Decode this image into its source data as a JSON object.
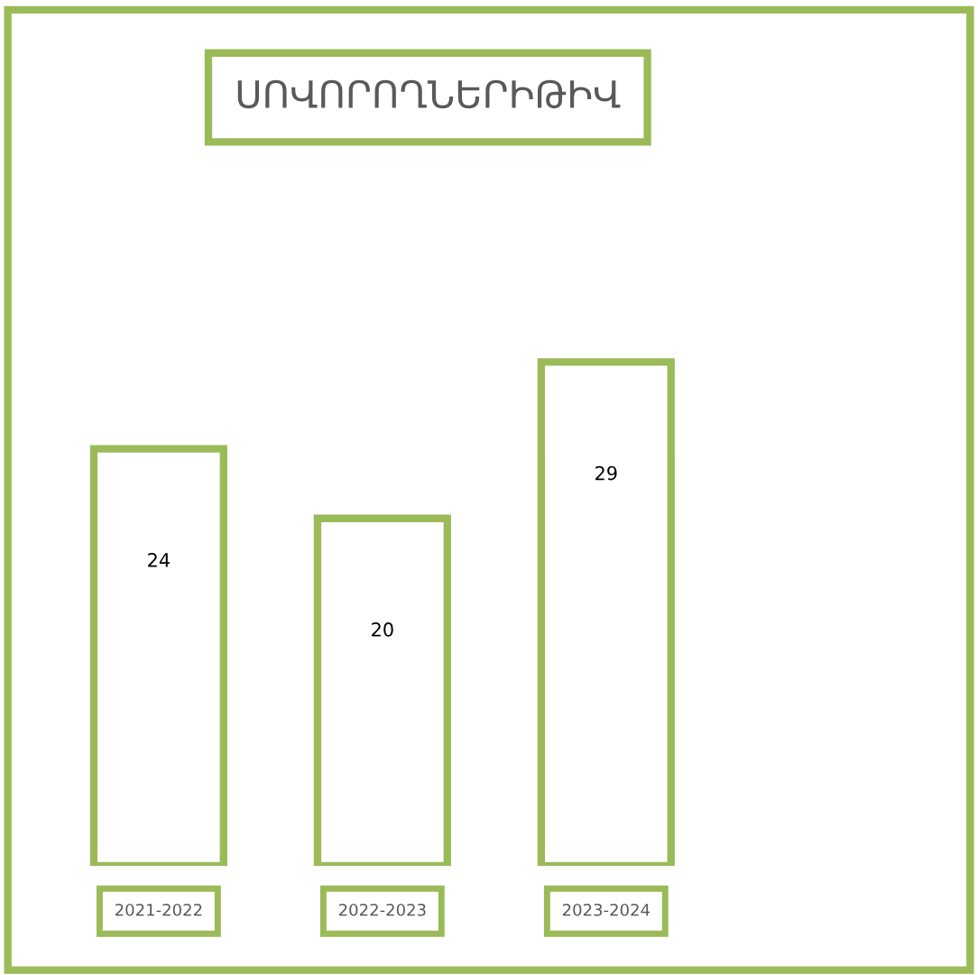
{
  "chart_data": {
    "type": "bar",
    "title": "ՍՈՎՈՐՈՂՆԵՐԻԹԻՎ",
    "categories": [
      "2021-2022",
      "2022-2023",
      "2023-2024"
    ],
    "values": [
      24,
      20,
      29
    ],
    "color": "#9bbb59",
    "data_labels": true,
    "grid": false,
    "legend": false
  }
}
